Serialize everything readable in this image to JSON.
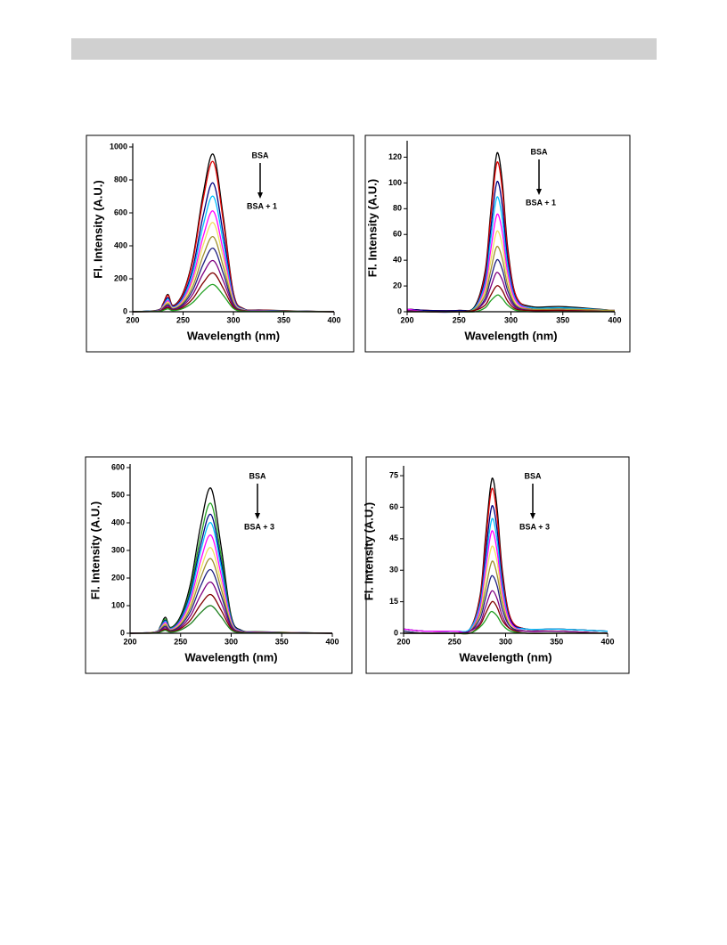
{
  "chart_data": [
    {
      "type": "line",
      "xlabel": "Wavelength (nm)",
      "ylabel": "Fl. Intensity (A.U.)",
      "annotations": [
        "BSA",
        "BSA + 1"
      ],
      "xlim": [
        200,
        400
      ],
      "xticks": [
        200,
        250,
        300,
        350,
        400
      ],
      "ylim": [
        0,
        1000
      ],
      "yticks": [
        0,
        200,
        400,
        600,
        800,
        1000
      ],
      "x": [
        200,
        225,
        230,
        235,
        240,
        250,
        260,
        270,
        280,
        290,
        300,
        310,
        330,
        400
      ],
      "series": [
        {
          "color": "#000000",
          "values": [
            0,
            10,
            48,
            105,
            38,
            115,
            334,
            716,
            955,
            573,
            115,
            19,
            10,
            0
          ]
        },
        {
          "color": "#e00000",
          "values": [
            0,
            9,
            46,
            100,
            36,
            109,
            319,
            683,
            910,
            546,
            109,
            18,
            9,
            0
          ]
        },
        {
          "color": "#000080",
          "values": [
            0,
            8,
            39,
            86,
            31,
            94,
            273,
            585,
            780,
            468,
            94,
            16,
            8,
            0
          ]
        },
        {
          "color": "#00bfff",
          "values": [
            0,
            7,
            35,
            77,
            28,
            84,
            245,
            525,
            700,
            420,
            84,
            14,
            7,
            0
          ]
        },
        {
          "color": "#ff00ff",
          "values": [
            0,
            6,
            31,
            67,
            24,
            73,
            214,
            458,
            610,
            366,
            73,
            12,
            6,
            0
          ]
        },
        {
          "color": "#f0e060",
          "values": [
            0,
            5,
            27,
            59,
            22,
            65,
            189,
            405,
            540,
            324,
            65,
            11,
            5,
            0
          ]
        },
        {
          "color": "#a09030",
          "values": [
            0,
            5,
            23,
            50,
            18,
            55,
            159,
            341,
            455,
            273,
            55,
            9,
            5,
            0
          ]
        },
        {
          "color": "#202080",
          "values": [
            0,
            4,
            19,
            42,
            15,
            46,
            135,
            289,
            385,
            231,
            46,
            8,
            4,
            0
          ]
        },
        {
          "color": "#800080",
          "values": [
            0,
            3,
            16,
            34,
            12,
            37,
            109,
            233,
            310,
            186,
            37,
            6,
            3,
            0
          ]
        },
        {
          "color": "#800000",
          "values": [
            0,
            2,
            12,
            26,
            9,
            28,
            82,
            176,
            235,
            141,
            28,
            5,
            2,
            0
          ]
        },
        {
          "color": "#22a022",
          "values": [
            0,
            2,
            8,
            18,
            7,
            20,
            58,
            124,
            165,
            99,
            20,
            3,
            2,
            0
          ]
        }
      ]
    },
    {
      "type": "line",
      "xlabel": "Wavelength (nm)",
      "ylabel": "Fl. Intensity (A.U.)",
      "annotations": [
        "BSA",
        "BSA + 1"
      ],
      "xlim": [
        200,
        400
      ],
      "xticks": [
        200,
        250,
        300,
        350,
        400
      ],
      "ylim": [
        0,
        130
      ],
      "yticks": [
        0,
        20,
        40,
        60,
        80,
        100,
        120
      ],
      "x": [
        200,
        220,
        250,
        265,
        275,
        280,
        285,
        288,
        292,
        297,
        305,
        320,
        350,
        400
      ],
      "series": [
        {
          "color": "#000000",
          "values": [
            2,
            1,
            1,
            4,
            31,
            73,
            116,
            122,
            98,
            49,
            12,
            4,
            4,
            1
          ]
        },
        {
          "color": "#e00000",
          "values": [
            2,
            1,
            1,
            3,
            29,
            69,
            109,
            115,
            92,
            46,
            12,
            3,
            3,
            1
          ]
        },
        {
          "color": "#000080",
          "values": [
            2,
            1,
            1,
            3,
            25,
            60,
            95,
            100,
            80,
            40,
            10,
            3,
            3,
            1
          ]
        },
        {
          "color": "#00bfff",
          "values": [
            2,
            0,
            0,
            3,
            22,
            53,
            84,
            88,
            70,
            35,
            9,
            3,
            3,
            1
          ]
        },
        {
          "color": "#ff00ff",
          "values": [
            2,
            0,
            0,
            2,
            19,
            45,
            71,
            75,
            60,
            30,
            8,
            2,
            2,
            1
          ]
        },
        {
          "color": "#f0e060",
          "values": [
            1,
            0,
            0,
            2,
            16,
            37,
            59,
            62,
            50,
            25,
            6,
            2,
            2,
            1
          ]
        },
        {
          "color": "#a09030",
          "values": [
            1,
            0,
            0,
            2,
            13,
            30,
            48,
            50,
            40,
            20,
            5,
            2,
            2,
            1
          ]
        },
        {
          "color": "#202080",
          "values": [
            1,
            0,
            0,
            1,
            10,
            24,
            38,
            40,
            32,
            16,
            4,
            1,
            1,
            0
          ]
        },
        {
          "color": "#800080",
          "values": [
            1,
            0,
            0,
            1,
            8,
            18,
            29,
            30,
            24,
            12,
            3,
            1,
            1,
            0
          ]
        },
        {
          "color": "#800000",
          "values": [
            0,
            0,
            0,
            1,
            5,
            12,
            19,
            20,
            16,
            8,
            2,
            1,
            1,
            0
          ]
        },
        {
          "color": "#22a022",
          "values": [
            0,
            0,
            0,
            0,
            3,
            8,
            12,
            13,
            10,
            5,
            1,
            0,
            0,
            0
          ]
        }
      ]
    },
    {
      "type": "line",
      "xlabel": "Wavelength (nm)",
      "ylabel": "Fl. Intensity (A.U.)",
      "annotations": [
        "BSA",
        "BSA + 3"
      ],
      "xlim": [
        200,
        400
      ],
      "xticks": [
        200,
        250,
        300,
        350,
        400
      ],
      "ylim": [
        0,
        600
      ],
      "yticks": [
        0,
        100,
        200,
        300,
        400,
        500,
        600
      ],
      "x": [
        200,
        225,
        230,
        235,
        240,
        250,
        260,
        270,
        280,
        290,
        300,
        310,
        330,
        400
      ],
      "series": [
        {
          "color": "#000000",
          "values": [
            0,
            5,
            26,
            58,
            21,
            63,
            184,
            394,
            525,
            315,
            63,
            11,
            5,
            0
          ]
        },
        {
          "color": "#22a022",
          "values": [
            0,
            5,
            24,
            52,
            19,
            56,
            165,
            353,
            470,
            282,
            56,
            9,
            5,
            0
          ]
        },
        {
          "color": "#000080",
          "values": [
            0,
            4,
            22,
            47,
            17,
            52,
            151,
            323,
            430,
            258,
            52,
            9,
            4,
            0
          ]
        },
        {
          "color": "#00bfff",
          "values": [
            0,
            4,
            20,
            44,
            16,
            48,
            140,
            300,
            400,
            240,
            48,
            8,
            4,
            0
          ]
        },
        {
          "color": "#ff00ff",
          "values": [
            0,
            4,
            18,
            39,
            14,
            43,
            124,
            266,
            355,
            213,
            43,
            7,
            4,
            0
          ]
        },
        {
          "color": "#f0e060",
          "values": [
            0,
            3,
            16,
            34,
            12,
            37,
            109,
            233,
            310,
            186,
            37,
            6,
            3,
            0
          ]
        },
        {
          "color": "#a09030",
          "values": [
            0,
            3,
            14,
            30,
            11,
            32,
            95,
            203,
            270,
            162,
            32,
            5,
            3,
            0
          ]
        },
        {
          "color": "#202080",
          "values": [
            0,
            2,
            12,
            25,
            9,
            28,
            81,
            173,
            230,
            138,
            28,
            5,
            2,
            0
          ]
        },
        {
          "color": "#800080",
          "values": [
            0,
            2,
            9,
            20,
            7,
            22,
            65,
            139,
            185,
            111,
            22,
            4,
            2,
            0
          ]
        },
        {
          "color": "#800000",
          "values": [
            0,
            1,
            7,
            15,
            6,
            17,
            49,
            105,
            140,
            84,
            17,
            3,
            1,
            0
          ]
        },
        {
          "color": "#208020",
          "values": [
            0,
            1,
            5,
            11,
            4,
            12,
            35,
            75,
            100,
            60,
            12,
            2,
            1,
            0
          ]
        }
      ]
    },
    {
      "type": "line",
      "xlabel": "Wavelength (nm)",
      "ylabel": "Fl. Intensity (A.U.)",
      "annotations": [
        "BSA",
        "BSA + 3"
      ],
      "xlim": [
        200,
        400
      ],
      "xticks": [
        200,
        250,
        300,
        350,
        400
      ],
      "ylim": [
        0,
        78
      ],
      "yticks": [
        0,
        15,
        30,
        45,
        60,
        75
      ],
      "x": [
        200,
        220,
        250,
        265,
        275,
        280,
        285,
        288,
        292,
        297,
        305,
        320,
        350,
        400
      ],
      "series": [
        {
          "color": "#000000",
          "values": [
            2,
            1,
            1,
            2,
            18,
            44,
            69,
            73,
            58,
            29,
            7,
            2,
            2,
            1
          ]
        },
        {
          "color": "#e00000",
          "values": [
            2,
            1,
            1,
            2,
            17,
            41,
            65,
            68,
            54,
            27,
            7,
            2,
            2,
            1
          ]
        },
        {
          "color": "#000080",
          "values": [
            2,
            1,
            1,
            2,
            15,
            36,
            57,
            60,
            48,
            24,
            6,
            2,
            2,
            1
          ]
        },
        {
          "color": "#00bfff",
          "values": [
            2,
            1,
            1,
            2,
            14,
            32,
            51,
            54,
            43,
            22,
            5,
            2,
            2,
            1
          ]
        },
        {
          "color": "#ff00ff",
          "values": [
            2,
            1,
            1,
            1,
            12,
            29,
            46,
            48,
            38,
            19,
            5,
            1,
            1,
            0
          ]
        },
        {
          "color": "#f0e060",
          "values": [
            1,
            0,
            0,
            1,
            10,
            25,
            39,
            41,
            33,
            16,
            4,
            1,
            1,
            0
          ]
        },
        {
          "color": "#a09030",
          "values": [
            1,
            0,
            0,
            1,
            9,
            20,
            32,
            34,
            27,
            14,
            3,
            1,
            1,
            0
          ]
        },
        {
          "color": "#202080",
          "values": [
            1,
            0,
            0,
            1,
            7,
            16,
            26,
            27,
            22,
            11,
            3,
            1,
            1,
            0
          ]
        },
        {
          "color": "#800080",
          "values": [
            0,
            0,
            0,
            1,
            5,
            12,
            19,
            20,
            16,
            8,
            2,
            1,
            1,
            0
          ]
        },
        {
          "color": "#800000",
          "values": [
            0,
            0,
            0,
            0,
            4,
            9,
            14,
            15,
            12,
            6,
            2,
            0,
            0,
            0
          ]
        },
        {
          "color": "#22a022",
          "values": [
            0,
            0,
            0,
            0,
            3,
            6,
            10,
            10,
            8,
            4,
            1,
            0,
            0,
            0
          ]
        }
      ]
    }
  ]
}
